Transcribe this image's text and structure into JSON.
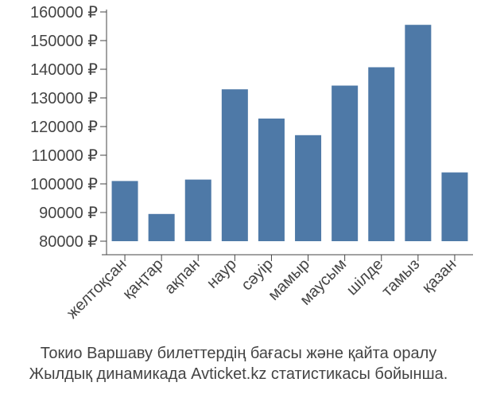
{
  "chart_data": {
    "type": "bar",
    "categories": [
      "желтоқсан",
      "қаңтар",
      "ақпан",
      "наур",
      "сәуір",
      "мамыр",
      "маусым",
      "шілде",
      "тамыз",
      "қазан"
    ],
    "values": [
      101000,
      89500,
      101500,
      133000,
      122800,
      117000,
      134300,
      140700,
      155500,
      104000
    ],
    "ylim": [
      80000,
      160000
    ],
    "yticks": [
      80000,
      90000,
      100000,
      110000,
      120000,
      130000,
      140000,
      150000,
      160000
    ],
    "currency": "₽",
    "grid": false,
    "bar_color": "#4e79a7"
  },
  "caption": {
    "line1": "Токио Варшаву билеттердің бағасы және қайта оралу",
    "line2": "Жылдық динамикада Avticket.kz статистикасы бойынша."
  }
}
